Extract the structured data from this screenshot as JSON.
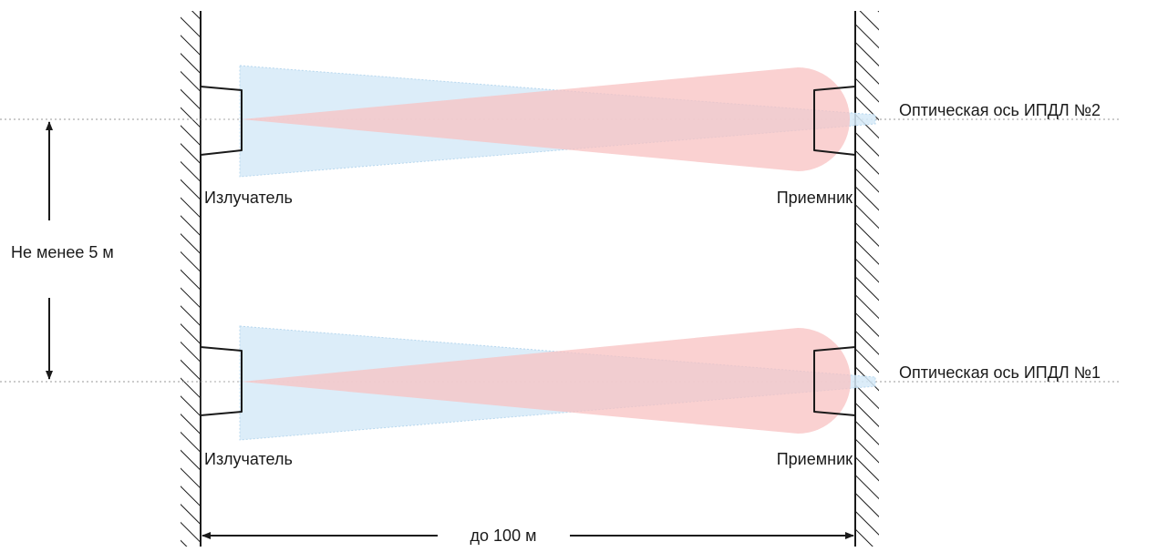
{
  "labels": {
    "emitter_top": "Излучатель",
    "receiver_top": "Приемник",
    "emitter_bottom": "Излучатель",
    "receiver_bottom": "Приемник",
    "axis_2": "Оптическая ось ИПДЛ №2",
    "axis_1": "Оптическая ось ИПДЛ №1",
    "spacing": "Не менее 5 м",
    "distance": "до 100 м"
  },
  "colors": {
    "emitter_beam": "#d6eaf8",
    "receiver_beam": "#f8c2c2",
    "line": "#1a1a1a",
    "axis_line": "#9a9a9a"
  }
}
